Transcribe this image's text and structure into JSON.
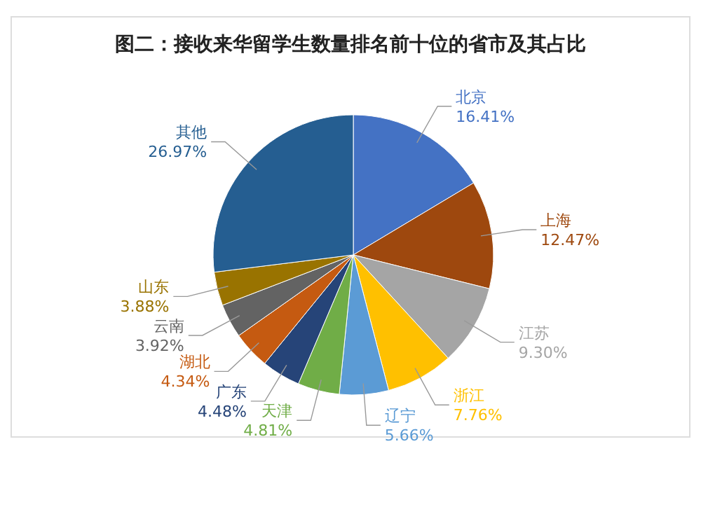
{
  "chart_data": {
    "type": "pie",
    "title": "图二：接收来华留学生数量排名前十位的省市及其占比",
    "categories": [
      "北京",
      "上海",
      "江苏",
      "浙江",
      "辽宁",
      "天津",
      "广东",
      "湖北",
      "云南",
      "山东",
      "其他"
    ],
    "values": [
      16.41,
      12.47,
      9.3,
      7.76,
      5.66,
      4.81,
      4.48,
      4.34,
      3.92,
      3.88,
      26.97
    ],
    "value_labels": [
      "16.41%",
      "12.47%",
      "9.30%",
      "7.76%",
      "5.66%",
      "4.81%",
      "4.48%",
      "4.34%",
      "3.92%",
      "3.88%",
      "26.97%"
    ],
    "colors": [
      "#4472c4",
      "#9e480e",
      "#a5a5a5",
      "#ffc000",
      "#5b9bd5",
      "#70ad47",
      "#264478",
      "#c55a11",
      "#636363",
      "#997300",
      "#255e91"
    ],
    "legend": false
  }
}
